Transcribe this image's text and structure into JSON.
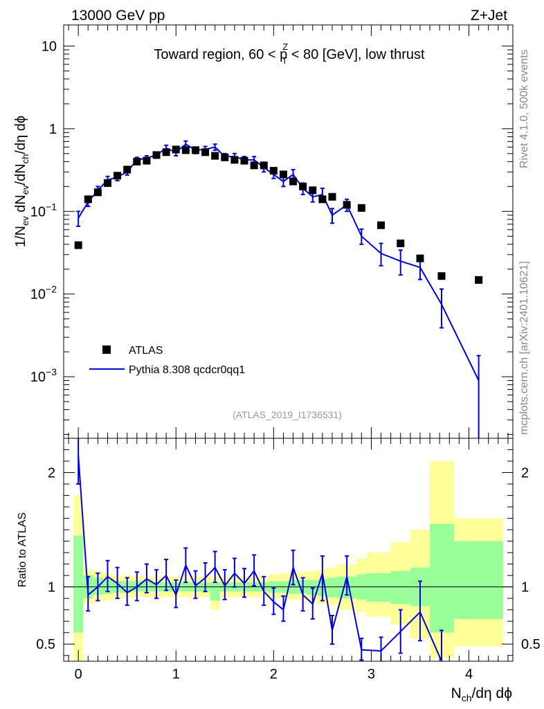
{
  "header": {
    "energy": "13000 GeV pp",
    "process": "Z+Jet"
  },
  "side_labels": {
    "rivet": "Rivet 4.1.0,  500k events",
    "source": "mcplots.cern.ch [arXiv:2401.10621]"
  },
  "chart_data": [
    {
      "type": "scatter",
      "title_parts": {
        "a": "Toward region, 60 < p",
        "sup": "Z",
        "sub": "T",
        "b": " < 80 [GeV], low thrust"
      },
      "analysis": "(ATLAS_2019_I1736531)",
      "ylabel": "1/N_ev dN_ev/dN_ch/dη dϕ",
      "yscale": "log",
      "xlim": [
        -0.15,
        4.45
      ],
      "ylim": [
        0.00018,
        18
      ],
      "y_ticks": [
        {
          "value": 10,
          "label": "10"
        },
        {
          "value": 1,
          "label": "1"
        },
        {
          "value": 0.1,
          "base": "10",
          "exp": "−1"
        },
        {
          "value": 0.01,
          "base": "10",
          "exp": "−2"
        },
        {
          "value": 0.001,
          "base": "10",
          "exp": "−3"
        }
      ],
      "legend": {
        "position": "bottom-left",
        "entries": [
          "ATLAS",
          "Pythia 8.308 qcdcr0qq1"
        ]
      },
      "series": [
        {
          "name": "ATLAS",
          "marker": "square",
          "color": "#000000",
          "x": [
            0.0,
            0.1,
            0.2,
            0.3,
            0.4,
            0.5,
            0.6,
            0.7,
            0.8,
            0.9,
            1.0,
            1.1,
            1.2,
            1.3,
            1.4,
            1.5,
            1.6,
            1.7,
            1.8,
            1.9,
            2.0,
            2.1,
            2.2,
            2.3,
            2.4,
            2.5,
            2.6,
            2.75,
            2.9,
            3.1,
            3.3,
            3.5,
            3.72,
            4.1
          ],
          "y": [
            0.039,
            0.14,
            0.17,
            0.22,
            0.27,
            0.32,
            0.4,
            0.41,
            0.48,
            0.52,
            0.56,
            0.55,
            0.55,
            0.52,
            0.47,
            0.45,
            0.42,
            0.41,
            0.36,
            0.36,
            0.31,
            0.28,
            0.23,
            0.2,
            0.18,
            0.14,
            0.15,
            0.12,
            0.11,
            0.068,
            0.041,
            0.027,
            0.0165,
            0.0148
          ]
        },
        {
          "name": "Pythia 8.308 qcdcr0qq1",
          "marker": "line",
          "color": "#0000dd",
          "x": [
            0.0,
            0.1,
            0.2,
            0.3,
            0.4,
            0.5,
            0.6,
            0.7,
            0.8,
            0.9,
            1.0,
            1.1,
            1.2,
            1.3,
            1.4,
            1.5,
            1.6,
            1.7,
            1.8,
            1.9,
            2.0,
            2.1,
            2.2,
            2.3,
            2.4,
            2.5,
            2.6,
            2.75,
            2.9,
            3.1,
            3.3,
            3.5,
            3.72,
            4.1
          ],
          "y": [
            0.083,
            0.13,
            0.18,
            0.24,
            0.26,
            0.3,
            0.42,
            0.44,
            0.48,
            0.58,
            0.52,
            0.65,
            0.55,
            0.56,
            0.6,
            0.46,
            0.46,
            0.42,
            0.42,
            0.34,
            0.28,
            0.23,
            0.28,
            0.19,
            0.15,
            0.16,
            0.09,
            0.12,
            0.05,
            0.031,
            0.025,
            0.021,
            0.0075,
            0.0009
          ],
          "err_lo": [
            0.066,
            0.115,
            0.16,
            0.215,
            0.235,
            0.275,
            0.39,
            0.41,
            0.44,
            0.53,
            0.47,
            0.59,
            0.5,
            0.51,
            0.55,
            0.42,
            0.42,
            0.38,
            0.38,
            0.3,
            0.25,
            0.2,
            0.24,
            0.16,
            0.13,
            0.13,
            0.072,
            0.1,
            0.04,
            0.022,
            0.017,
            0.015,
            0.0039,
            0.00012
          ],
          "err_hi": [
            0.1,
            0.145,
            0.2,
            0.265,
            0.285,
            0.325,
            0.45,
            0.47,
            0.52,
            0.63,
            0.57,
            0.71,
            0.6,
            0.61,
            0.65,
            0.5,
            0.5,
            0.46,
            0.46,
            0.38,
            0.31,
            0.26,
            0.32,
            0.22,
            0.17,
            0.19,
            0.108,
            0.14,
            0.061,
            0.041,
            0.034,
            0.028,
            0.0115,
            0.0018
          ]
        }
      ]
    },
    {
      "type": "line",
      "ylabel": "Ratio to ATLAS",
      "xlabel": "N_ch/dη dϕ",
      "xlim": [
        -0.15,
        4.45
      ],
      "ylim": [
        0.35,
        2.3
      ],
      "y_ticks": [
        0.5,
        1,
        2
      ],
      "x_ticks": [
        0,
        1,
        2,
        3,
        4
      ],
      "reference": 1,
      "bands": {
        "edges": [
          -0.05,
          0.05,
          0.15,
          0.25,
          0.35,
          0.45,
          0.55,
          0.65,
          0.75,
          0.85,
          0.95,
          1.05,
          1.15,
          1.25,
          1.35,
          1.45,
          1.55,
          1.65,
          1.75,
          1.85,
          1.95,
          2.05,
          2.15,
          2.25,
          2.35,
          2.45,
          2.55,
          2.65,
          2.85,
          2.95,
          3.2,
          3.4,
          3.6,
          3.85,
          4.35
        ],
        "green_lo": [
          0.6,
          0.9,
          0.93,
          0.94,
          0.95,
          0.95,
          0.96,
          0.96,
          0.96,
          0.96,
          0.96,
          0.96,
          0.96,
          0.96,
          0.88,
          0.96,
          0.96,
          0.96,
          0.96,
          0.96,
          0.95,
          0.95,
          0.94,
          0.94,
          0.93,
          0.92,
          0.91,
          0.9,
          0.89,
          0.87,
          0.85,
          0.83,
          0.6,
          0.72
        ],
        "green_hi": [
          1.45,
          1.1,
          1.08,
          1.06,
          1.05,
          1.05,
          1.05,
          1.05,
          1.04,
          1.04,
          1.04,
          1.04,
          1.04,
          1.04,
          1.04,
          1.04,
          1.04,
          1.04,
          1.04,
          1.04,
          1.05,
          1.05,
          1.06,
          1.06,
          1.06,
          1.07,
          1.08,
          1.09,
          1.11,
          1.12,
          1.14,
          1.17,
          1.55,
          1.4
        ],
        "yellow_lo": [
          0.35,
          0.85,
          0.87,
          0.88,
          0.9,
          0.9,
          0.91,
          0.91,
          0.91,
          0.91,
          0.91,
          0.91,
          0.91,
          0.91,
          0.8,
          0.91,
          0.91,
          0.91,
          0.91,
          0.91,
          0.9,
          0.9,
          0.89,
          0.89,
          0.88,
          0.85,
          0.84,
          0.8,
          0.78,
          0.74,
          0.67,
          0.55,
          0.38,
          0.48
        ],
        "yellow_hi": [
          1.8,
          1.16,
          1.14,
          1.12,
          1.1,
          1.1,
          1.09,
          1.09,
          1.09,
          1.09,
          1.09,
          1.09,
          1.09,
          1.09,
          1.09,
          1.09,
          1.09,
          1.09,
          1.09,
          1.09,
          1.11,
          1.12,
          1.13,
          1.13,
          1.14,
          1.15,
          1.17,
          1.2,
          1.25,
          1.3,
          1.39,
          1.5,
          2.1,
          1.6
        ],
        "green_color": "#99ff99",
        "yellow_color": "#ffff99"
      },
      "series": [
        {
          "name": "Pythia 8.308 qcdcr0qq1 / ATLAS",
          "color": "#0000dd",
          "x": [
            0.0,
            0.1,
            0.2,
            0.3,
            0.4,
            0.5,
            0.6,
            0.7,
            0.8,
            0.9,
            1.0,
            1.1,
            1.2,
            1.3,
            1.4,
            1.5,
            1.6,
            1.7,
            1.8,
            1.9,
            2.0,
            2.1,
            2.2,
            2.3,
            2.4,
            2.5,
            2.6,
            2.75,
            2.9,
            3.1,
            3.3,
            3.5,
            3.72
          ],
          "y": [
            2.15,
            0.93,
            1.0,
            1.09,
            1.03,
            0.95,
            1.0,
            1.07,
            1.02,
            1.1,
            0.93,
            1.19,
            1.01,
            1.08,
            1.17,
            1.01,
            1.12,
            1.03,
            1.14,
            0.96,
            0.87,
            0.8,
            1.17,
            0.93,
            0.85,
            1.12,
            0.62,
            1.09,
            0.45,
            0.44,
            0.61,
            0.78,
            0.34
          ],
          "err_lo": [
            1.9,
            0.79,
            0.88,
            0.96,
            0.9,
            0.84,
            0.88,
            0.95,
            0.9,
            0.97,
            0.82,
            1.04,
            0.9,
            0.96,
            1.04,
            0.89,
            1.0,
            0.91,
            1.01,
            0.84,
            0.76,
            0.7,
            1.02,
            0.79,
            0.72,
            0.88,
            0.5,
            0.93,
            0.36,
            0.32,
            0.42,
            0.53,
            0.2
          ],
          "err_hi": [
            2.35,
            1.09,
            1.12,
            1.23,
            1.17,
            1.08,
            1.13,
            1.2,
            1.15,
            1.24,
            1.06,
            1.34,
            1.14,
            1.21,
            1.31,
            1.15,
            1.25,
            1.16,
            1.28,
            1.09,
            0.99,
            0.92,
            1.32,
            1.08,
            0.99,
            1.27,
            0.75,
            1.27,
            0.55,
            0.56,
            0.8,
            1.05,
            0.62
          ]
        }
      ]
    }
  ]
}
